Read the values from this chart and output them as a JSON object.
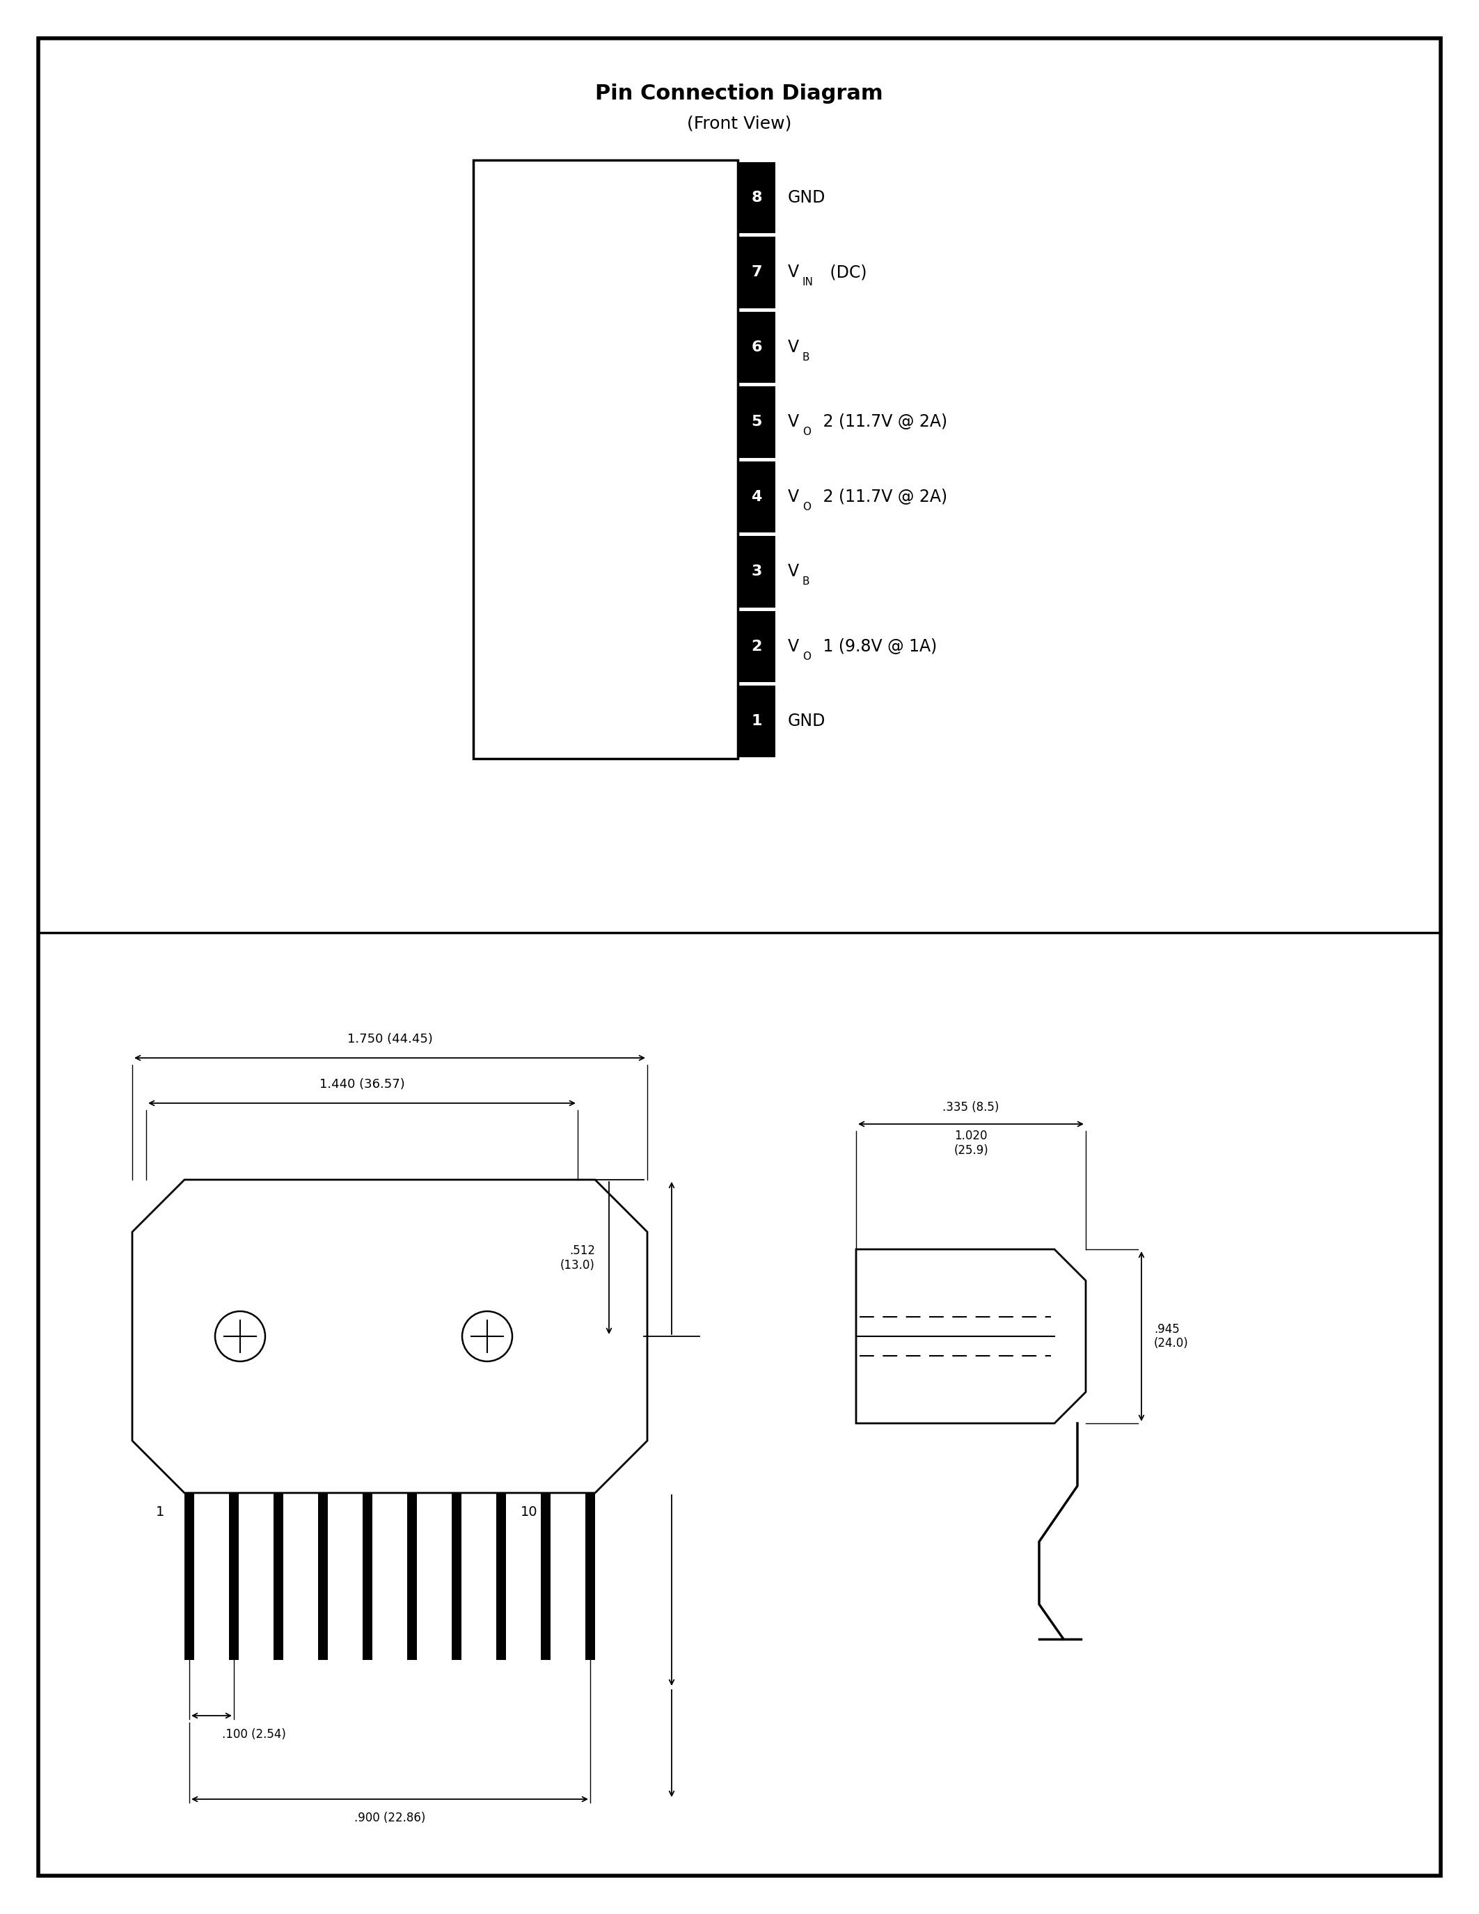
{
  "page_bg": "#ffffff",
  "top_title": "Pin Connection Diagram",
  "top_subtitle": "(Front View)",
  "pins": [
    {
      "num": 8,
      "type": "gnd"
    },
    {
      "num": 7,
      "type": "vin"
    },
    {
      "num": 6,
      "type": "vb"
    },
    {
      "num": 5,
      "type": "vo2"
    },
    {
      "num": 4,
      "type": "vo2"
    },
    {
      "num": 3,
      "type": "vb"
    },
    {
      "num": 2,
      "type": "vo1"
    },
    {
      "num": 1,
      "type": "gnd"
    }
  ],
  "dim_1750": "1.750 (44.45)",
  "dim_1440": "1.440 (36.57)",
  "dim_335": ".335 (8.5)",
  "dim_1020": "1.020\n(25.9)",
  "dim_512": ".512\n(13.0)",
  "dim_945": ".945\n(24.0)",
  "dim_100": ".100 (2.54)",
  "dim_900": ".900 (22.86)"
}
